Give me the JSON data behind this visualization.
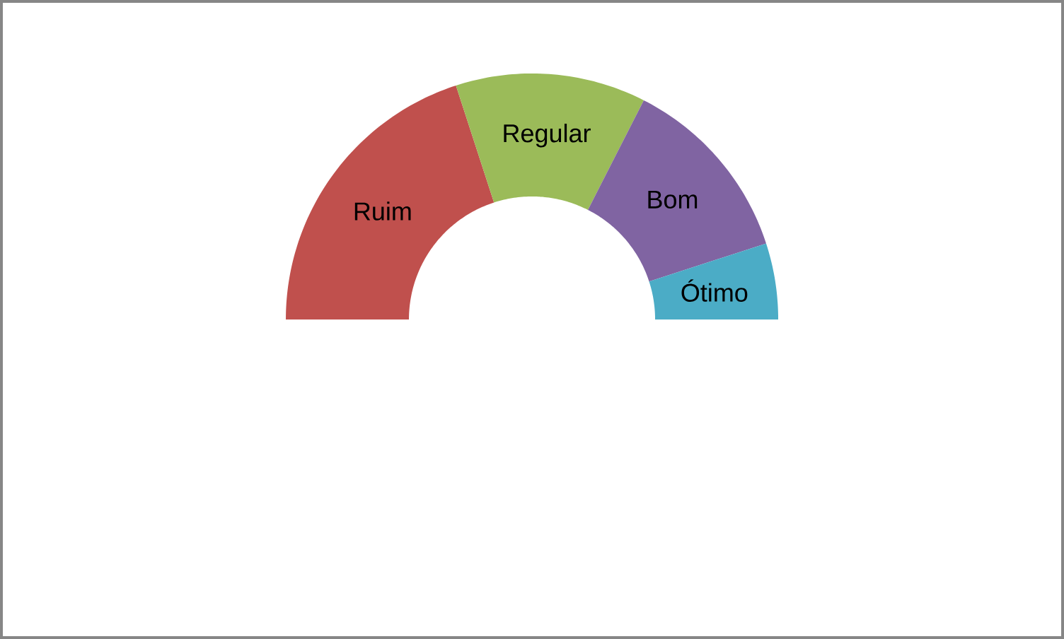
{
  "chart_data": {
    "type": "donut",
    "categories": [
      "Ruim",
      "Regular",
      "Bom",
      "Ótimo"
    ],
    "values": [
      40,
      25,
      25,
      10
    ],
    "colors": [
      "#c0504d",
      "#9bbb59",
      "#8064a2",
      "#4bacc6"
    ]
  }
}
